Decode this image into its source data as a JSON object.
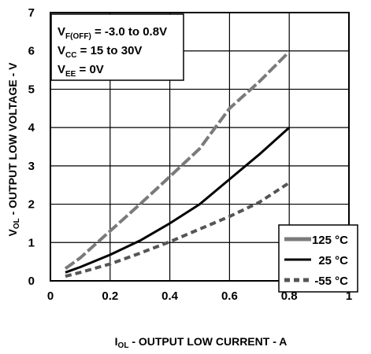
{
  "chart_data": {
    "type": "line",
    "xlabel": {
      "main": "I",
      "sub": "OL",
      "rest": " - OUTPUT LOW CURRENT - A"
    },
    "ylabel": {
      "main": "V",
      "sub": "OL",
      "rest": " - OUTPUT LOW VOLTAGE - V"
    },
    "xlim": [
      0,
      1
    ],
    "ylim": [
      0,
      7
    ],
    "x_ticks": [
      "0",
      "0.2",
      "0.4",
      "0.6",
      "0.8",
      "1"
    ],
    "y_ticks": [
      "0",
      "1",
      "2",
      "3",
      "4",
      "5",
      "6",
      "7"
    ],
    "grid": true,
    "conditions": [
      {
        "main": "V",
        "sub": "F(OFF)",
        "rest": " = -3.0 to 0.8V"
      },
      {
        "main": "V",
        "sub": "CC",
        "rest": " = 15 to 30V"
      },
      {
        "main": "V",
        "sub": "EE",
        "rest": " = 0V"
      }
    ],
    "legend_position": "bottom-right",
    "series": [
      {
        "name": "125 °C",
        "label_main": "125",
        "color": "#7a7a7a",
        "dash": "14,4",
        "x": [
          0.05,
          0.1,
          0.2,
          0.3,
          0.4,
          0.5,
          0.6,
          0.7,
          0.8
        ],
        "y": [
          0.32,
          0.6,
          1.3,
          2.0,
          2.72,
          3.45,
          4.5,
          5.2,
          5.98
        ]
      },
      {
        "name": "25 °C",
        "label_main": "25",
        "color": "#000000",
        "dash": "",
        "x": [
          0.05,
          0.1,
          0.2,
          0.3,
          0.4,
          0.5,
          0.6,
          0.7,
          0.8
        ],
        "y": [
          0.22,
          0.36,
          0.68,
          1.05,
          1.5,
          2.0,
          2.65,
          3.3,
          4.0
        ]
      },
      {
        "name": "-55 °C",
        "label_main": "-55",
        "color": "#555555",
        "dash": "8,5",
        "x": [
          0.05,
          0.1,
          0.2,
          0.3,
          0.4,
          0.5,
          0.6,
          0.7,
          0.8
        ],
        "y": [
          0.12,
          0.22,
          0.44,
          0.72,
          1.02,
          1.35,
          1.68,
          2.05,
          2.56
        ]
      }
    ]
  }
}
